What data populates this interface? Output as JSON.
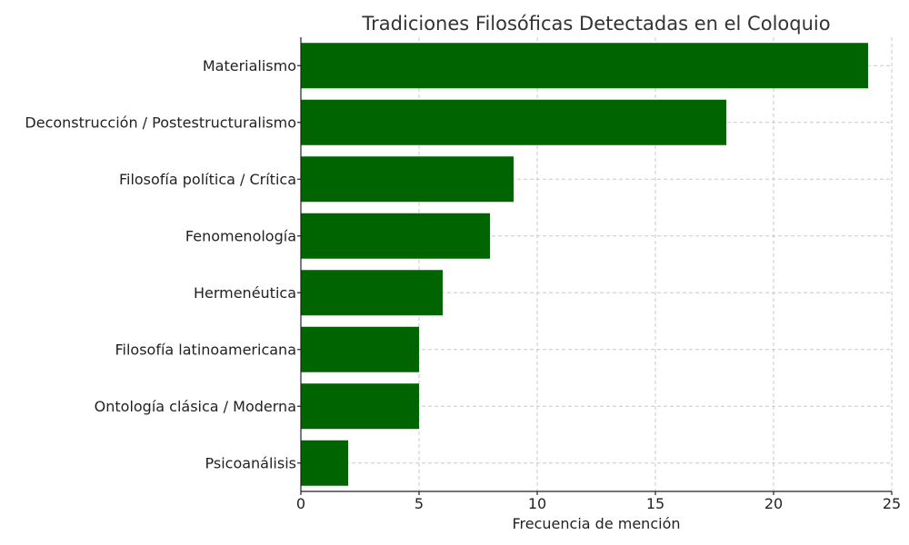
{
  "chart_data": {
    "type": "bar",
    "orientation": "horizontal",
    "title": "Tradiciones Filosóficas Detectadas en el Coloquio",
    "xlabel": "Frecuencia de mención",
    "ylabel": "",
    "categories": [
      "Materialismo",
      "Deconstrucción / Postestructuralismo",
      "Filosofía política / Crítica",
      "Fenomenología",
      "Hermenéutica",
      "Filosofía latinoamericana",
      "Ontología clásica / Moderna",
      "Psicoanálisis"
    ],
    "values": [
      24,
      18,
      9,
      8,
      6,
      5,
      5,
      2
    ],
    "xlim": [
      0,
      25
    ],
    "xticks": [
      "0",
      "5",
      "10",
      "15",
      "20",
      "25"
    ],
    "grid": true,
    "bar_color": "#006400",
    "grid_color": "#c8c8c8"
  }
}
